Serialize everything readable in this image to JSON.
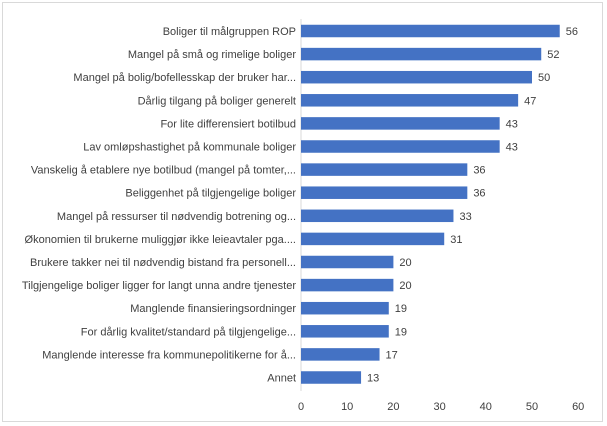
{
  "chart_data": {
    "type": "bar",
    "orientation": "horizontal",
    "categories": [
      "Boliger til målgruppen ROP",
      "Mangel på små og rimelige boliger",
      "Mangel på bolig/bofellesskap der bruker har...",
      "Dårlig tilgang på boliger generelt",
      "For lite differensiert botilbud",
      "Lav omløpshastighet på kommunale boliger",
      "Vanskelig å etablere nye botilbud (mangel på tomter,...",
      "Beliggenhet på tilgjengelige boliger",
      "Mangel på ressurser til nødvendig botrening og...",
      "Økonomien til brukerne muliggjør ikke leieavtaler pga....",
      "Brukere takker nei til nødvendig bistand fra personell...",
      "Tilgjengelige boliger ligger for langt unna andre tjenester",
      "Manglende finansieringsordninger",
      "For dårlig kvalitet/standard på tilgjengelige...",
      "Manglende interesse fra kommunepolitikerne for å...",
      "Annet"
    ],
    "values": [
      56,
      52,
      50,
      47,
      43,
      43,
      36,
      36,
      33,
      31,
      20,
      20,
      19,
      19,
      17,
      13
    ],
    "title": "",
    "xlabel": "",
    "ylabel": "",
    "xlim": [
      0,
      60
    ],
    "xticks": [
      0,
      10,
      20,
      30,
      40,
      50,
      60
    ],
    "grid": false,
    "legend": "none",
    "bar_color": "#4472c4",
    "axis_color": "#d9d9d9",
    "text_color": "#404040"
  }
}
